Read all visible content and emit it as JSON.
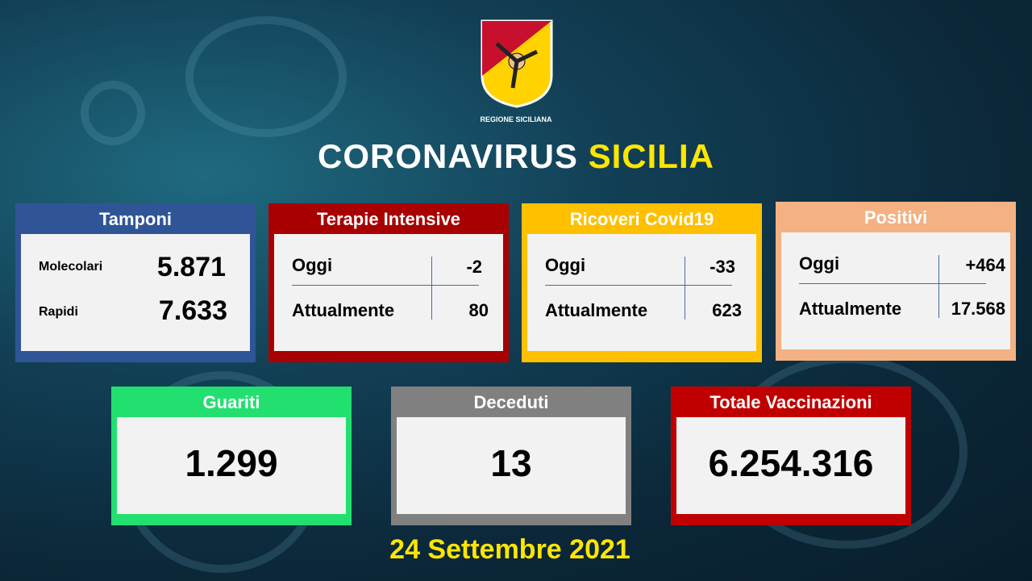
{
  "header": {
    "logo_text": "REGIONE SICILIANA",
    "title_main": "CORONAVIRUS",
    "title_accent": "SICILIA"
  },
  "colors": {
    "tamponi": "#2f5597",
    "terapie": "#a80000",
    "ricoveri": "#ffc000",
    "positivi": "#f4b183",
    "guariti": "#22e070",
    "deceduti": "#808080",
    "vaccinazioni": "#c00000",
    "accent": "#ffe600"
  },
  "tamponi": {
    "title": "Tamponi",
    "rows": [
      {
        "label": "Molecolari",
        "value": "5.871"
      },
      {
        "label": "Rapidi",
        "value": "7.633"
      }
    ]
  },
  "terapie": {
    "title": "Terapie Intensive",
    "oggi_label": "Oggi",
    "oggi": "-2",
    "att_label": "Attualmente",
    "att": "80"
  },
  "ricoveri": {
    "title": "Ricoveri Covid19",
    "oggi_label": "Oggi",
    "oggi": "-33",
    "att_label": "Attualmente",
    "att": "623"
  },
  "positivi": {
    "title": "Positivi",
    "oggi_label": "Oggi",
    "oggi": "+464",
    "att_label": "Attualmente",
    "att": "17.568"
  },
  "guariti": {
    "title": "Guariti",
    "value": "1.299"
  },
  "deceduti": {
    "title": "Deceduti",
    "value": "13"
  },
  "vaccinazioni": {
    "title": "Totale Vaccinazioni",
    "value": "6.254.316"
  },
  "date": "24 Settembre 2021"
}
